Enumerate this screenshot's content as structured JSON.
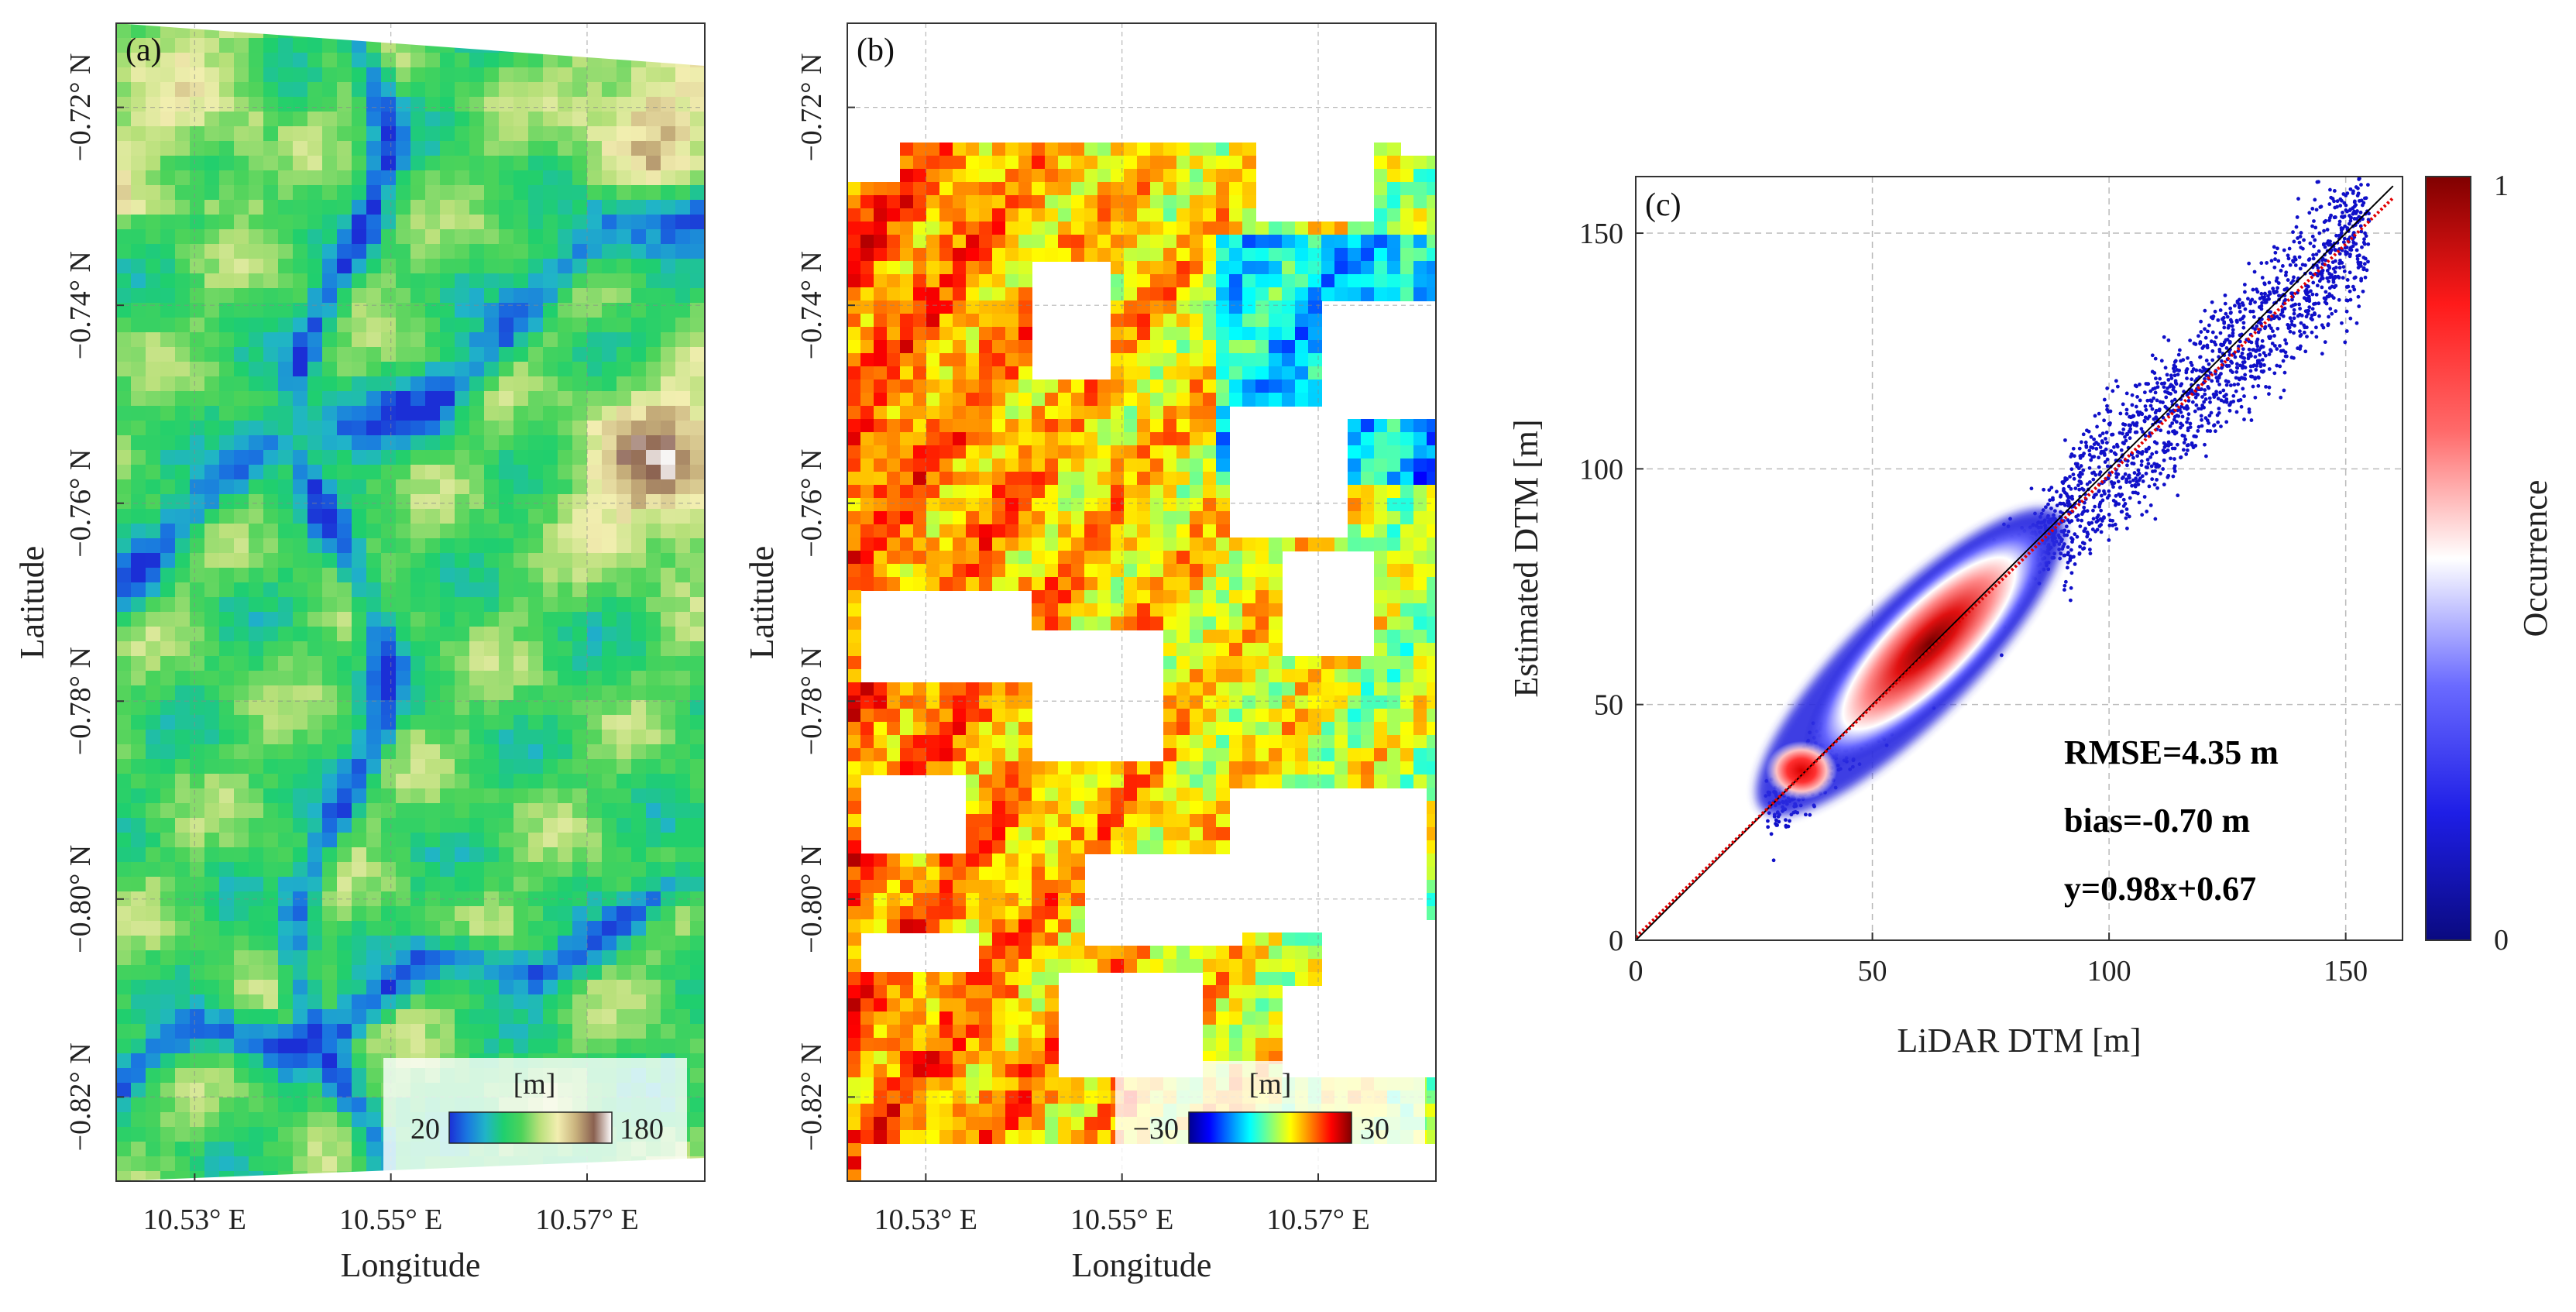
{
  "colors": {
    "terrain": [
      "#1b2fd6",
      "#1a78e0",
      "#20b4c8",
      "#1fcf6e",
      "#4cd35a",
      "#b8e07a",
      "#f2eeb0",
      "#c9b27d",
      "#8a6050",
      "#ffffff"
    ],
    "jet": [
      "#00008f",
      "#0000ff",
      "#0080ff",
      "#00ffff",
      "#80ff80",
      "#ffff00",
      "#ff8000",
      "#ff0000",
      "#800000"
    ],
    "occurrence": [
      "#0a0a80",
      "#1e1ee6",
      "#6a6aff",
      "#ffffff",
      "#ff6a6a",
      "#ff1a1a",
      "#800000"
    ]
  },
  "chart_data": [
    {
      "type": "heatmap",
      "panel_label": "(a)",
      "xlabel": "Longitude",
      "ylabel": "Latitude",
      "x_ticks": [
        10.53,
        10.55,
        10.57
      ],
      "x_tick_labels": [
        "10.53° E",
        "10.55° E",
        "10.57° E"
      ],
      "y_ticks": [
        -0.72,
        -0.74,
        -0.76,
        -0.78,
        -0.8,
        -0.82
      ],
      "y_tick_labels": [
        "−0.72° N",
        "−0.74° N",
        "−0.76° N",
        "−0.78° N",
        "−0.80° N",
        "−0.82° N"
      ],
      "xlim": [
        10.522,
        10.582
      ],
      "ylim": [
        -0.8285,
        -0.7115
      ],
      "colorbar": {
        "unit": "[m]",
        "min": 20,
        "max": 180,
        "min_label": "20",
        "max_label": "180",
        "colormap": "terrain"
      }
    },
    {
      "type": "heatmap",
      "panel_label": "(b)",
      "xlabel": "Longitude",
      "ylabel": "Latitude",
      "x_ticks": [
        10.53,
        10.55,
        10.57
      ],
      "x_tick_labels": [
        "10.53° E",
        "10.55° E",
        "10.57° E"
      ],
      "y_ticks": [
        -0.72,
        -0.74,
        -0.76,
        -0.78,
        -0.8,
        -0.82
      ],
      "y_tick_labels": [
        "−0.72° N",
        "−0.74° N",
        "−0.76° N",
        "−0.78° N",
        "−0.80° N",
        "−0.82° N"
      ],
      "xlim": [
        10.522,
        10.582
      ],
      "ylim": [
        -0.8285,
        -0.7115
      ],
      "colorbar": {
        "unit": "[m]",
        "min": -30,
        "max": 30,
        "min_label": "−30",
        "max_label": "30",
        "colormap": "jet"
      }
    },
    {
      "type": "scatter",
      "panel_label": "(c)",
      "xlabel": "LiDAR DTM [m]",
      "ylabel": "Estimated DTM [m]",
      "xlim": [
        0,
        162
      ],
      "ylim": [
        0,
        162
      ],
      "x_ticks": [
        0,
        50,
        100,
        150
      ],
      "y_ticks": [
        0,
        50,
        100,
        150
      ],
      "grid": true,
      "density_peaks": [
        {
          "x": 62,
          "y": 63
        },
        {
          "x": 35,
          "y": 36
        }
      ],
      "reference_line": "1:1",
      "fit": {
        "slope": 0.98,
        "intercept": 0.67
      },
      "annotations": [
        "RMSE=4.35 m",
        "bias=-0.70 m",
        "y=0.98x+0.67"
      ],
      "colorbar": {
        "label": "Occurrence",
        "min_label": "0",
        "max_label": "1",
        "colormap": "occurrence"
      }
    }
  ]
}
